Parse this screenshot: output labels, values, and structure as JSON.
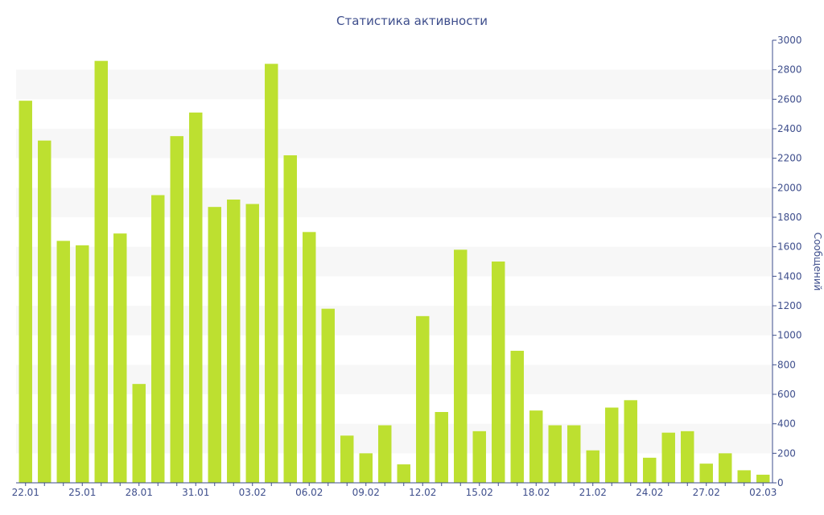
{
  "chart_data": {
    "type": "bar",
    "title": "Статистика активности",
    "xlabel": "",
    "ylabel": "Сообщений",
    "y_axis_side": "right",
    "ylim": [
      0,
      3000
    ],
    "yticks": [
      0,
      200,
      400,
      600,
      800,
      1000,
      1200,
      1400,
      1600,
      1800,
      2000,
      2200,
      2400,
      2600,
      2800,
      3000
    ],
    "categories": [
      "22.01",
      "23.01",
      "24.01",
      "25.01",
      "26.01",
      "27.01",
      "28.01",
      "29.01",
      "30.01",
      "31.01",
      "01.02",
      "02.02",
      "03.02",
      "04.02",
      "05.02",
      "06.02",
      "07.02",
      "08.02",
      "09.02",
      "10.02",
      "11.02",
      "12.02",
      "13.02",
      "14.02",
      "15.02",
      "16.02",
      "17.02",
      "18.02",
      "19.02",
      "20.02",
      "21.02",
      "22.02",
      "23.02",
      "24.02",
      "25.02",
      "26.02",
      "27.02",
      "28.02",
      "01.03",
      "02.03"
    ],
    "shown_tick_labels": [
      "22.01",
      "25.01",
      "28.01",
      "31.01",
      "03.02",
      "06.02",
      "09.02",
      "12.02",
      "15.02",
      "18.02",
      "21.02",
      "24.02",
      "27.02",
      "02.03"
    ],
    "values": [
      2590,
      2320,
      1640,
      1610,
      2860,
      1690,
      670,
      1950,
      2350,
      2510,
      1870,
      1920,
      1890,
      2840,
      2220,
      1700,
      1180,
      320,
      200,
      390,
      125,
      1130,
      480,
      1580,
      350,
      1500,
      895,
      490,
      390,
      390,
      220,
      510,
      560,
      170,
      340,
      350,
      130,
      200,
      85,
      55
    ],
    "grid": "horizontal-bands",
    "legend": "none",
    "colors": {
      "bar": "#bde030",
      "band": "#f7f7f7",
      "axis": "#3e4e8c",
      "text": "#3e4e8c"
    }
  }
}
